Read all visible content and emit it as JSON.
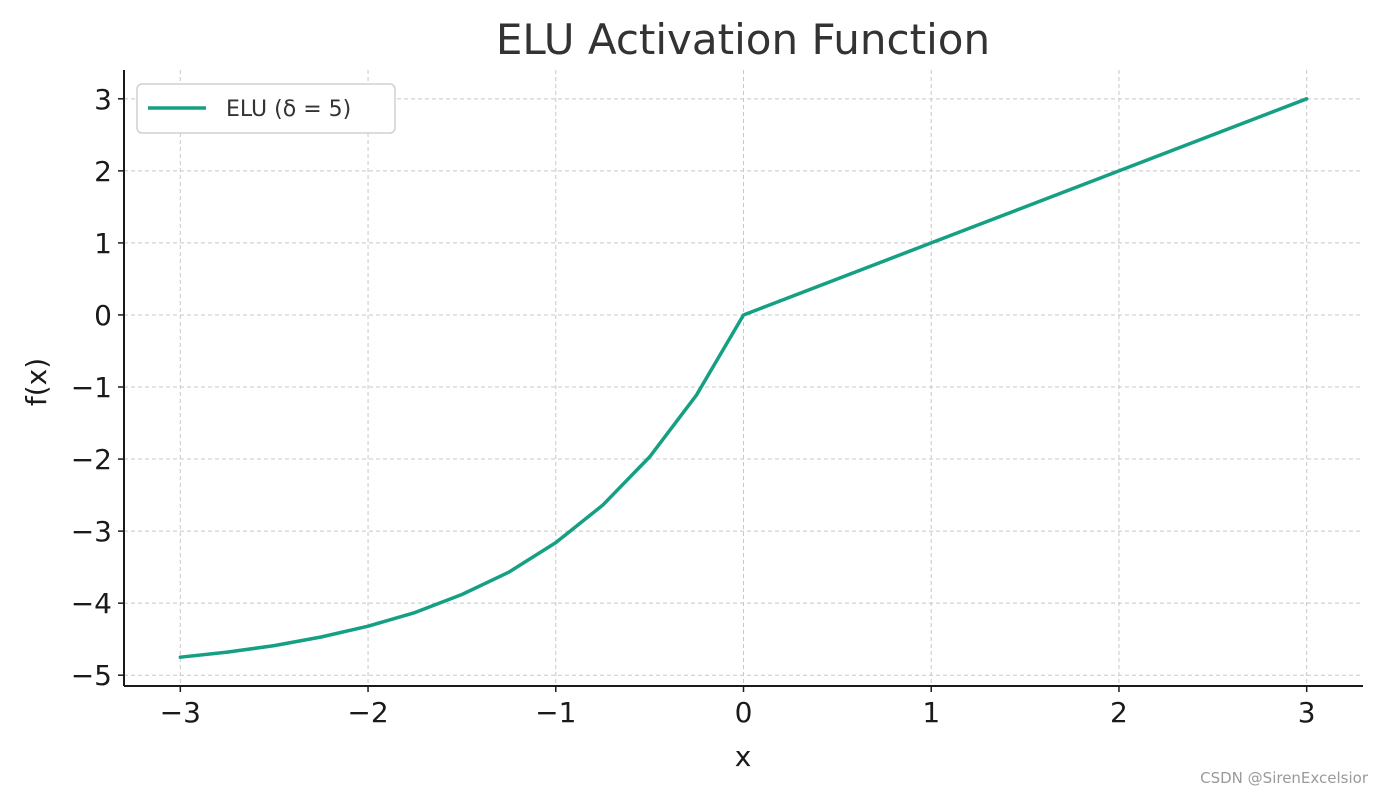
{
  "chart_data": {
    "type": "line",
    "title": "ELU Activation Function",
    "xlabel": "x",
    "ylabel": "f(x)",
    "xlim": [
      -3.3,
      3.3
    ],
    "ylim": [
      -5.15,
      3.4
    ],
    "x_ticks": [
      -3,
      -2,
      -1,
      0,
      1,
      2,
      3
    ],
    "x_tick_labels": [
      "−3",
      "−2",
      "−1",
      "0",
      "1",
      "2",
      "3"
    ],
    "y_ticks": [
      -5,
      -4,
      -3,
      -2,
      -1,
      0,
      1,
      2,
      3
    ],
    "y_tick_labels": [
      "−5",
      "−4",
      "−3",
      "−2",
      "−1",
      "0",
      "1",
      "2",
      "3"
    ],
    "grid": true,
    "legend_position": "top-left",
    "series": [
      {
        "name": "ELU (δ = 5)",
        "color": "#159f83",
        "x": [
          -3,
          -2.75,
          -2.5,
          -2.25,
          -2,
          -1.75,
          -1.5,
          -1.25,
          -1,
          -0.75,
          -0.5,
          -0.25,
          0,
          1,
          2,
          3
        ],
        "y": [
          -4.75,
          -4.68,
          -4.59,
          -4.47,
          -4.32,
          -4.13,
          -3.88,
          -3.57,
          -3.16,
          -2.64,
          -1.97,
          -1.11,
          0,
          1,
          2,
          3
        ]
      }
    ]
  },
  "watermark": "CSDN @SirenExcelsior"
}
